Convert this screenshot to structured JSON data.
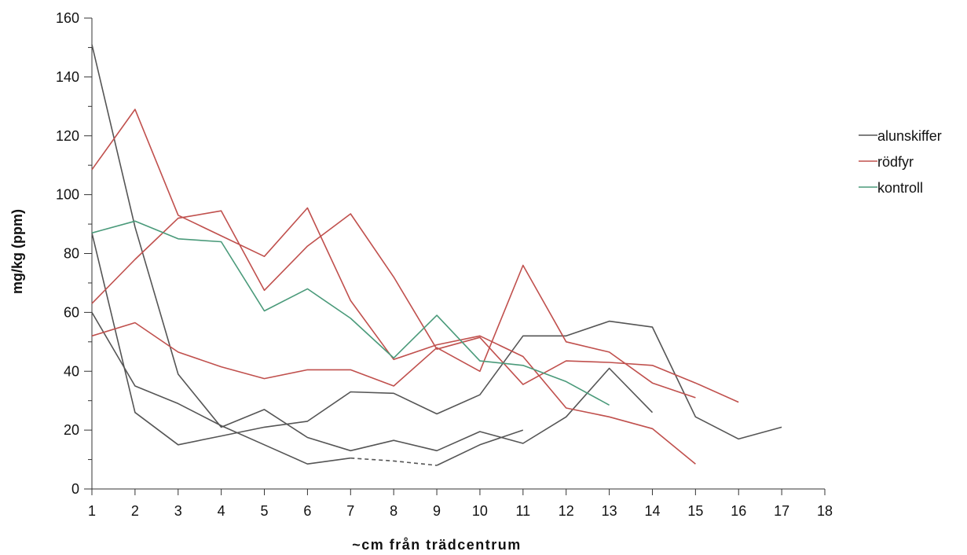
{
  "chart_data": {
    "type": "line",
    "xlabel": "~cm från trädcentrum",
    "ylabel": "mg/kg (ppm)",
    "xlim": [
      1,
      18
    ],
    "ylim": [
      0,
      160
    ],
    "x_ticks": [
      1,
      2,
      3,
      4,
      5,
      6,
      7,
      8,
      9,
      10,
      11,
      12,
      13,
      14,
      15,
      16,
      17,
      18
    ],
    "y_ticks": [
      0,
      20,
      40,
      60,
      80,
      100,
      120,
      140,
      160
    ],
    "y_minor_step": 10,
    "legend_position": "right",
    "legend": [
      {
        "label": "alunskiffer",
        "color": "#555555"
      },
      {
        "label": "rödfyr",
        "color": "#c0504d"
      },
      {
        "label": "kontroll",
        "color": "#4a9a7a"
      }
    ],
    "series": [
      {
        "group": "alunskiffer",
        "color": "#555555",
        "points": [
          [
            1,
            151
          ],
          [
            2,
            89
          ],
          [
            3,
            39
          ],
          [
            4,
            21
          ],
          [
            5,
            27
          ],
          [
            6,
            17.5
          ],
          [
            7,
            13
          ],
          [
            8,
            16.5
          ],
          [
            9,
            13
          ],
          [
            10,
            19.5
          ],
          [
            11,
            15.5
          ],
          [
            12,
            24.5
          ],
          [
            13,
            41
          ],
          [
            14,
            26
          ]
        ]
      },
      {
        "group": "alunskiffer",
        "color": "#555555",
        "points": [
          [
            1,
            87
          ],
          [
            2,
            26
          ],
          [
            3,
            15
          ],
          [
            4,
            18
          ],
          [
            5,
            21
          ],
          [
            6,
            23
          ],
          [
            7,
            33
          ],
          [
            8,
            32.5
          ],
          [
            9,
            25.5
          ],
          [
            10,
            32
          ],
          [
            11,
            52
          ],
          [
            12,
            52
          ],
          [
            13,
            57
          ],
          [
            14,
            55
          ],
          [
            15,
            24.5
          ],
          [
            16,
            17
          ],
          [
            17,
            21
          ]
        ]
      },
      {
        "group": "alunskiffer",
        "color": "#555555",
        "points": [
          [
            1,
            60
          ],
          [
            2,
            35
          ],
          [
            3,
            29
          ],
          [
            4,
            21.5
          ],
          [
            5,
            15
          ],
          [
            6,
            8.5
          ],
          [
            7,
            10.5
          ]
        ]
      },
      {
        "group": "alunskiffer",
        "color": "#555555",
        "dashed": true,
        "points": [
          [
            7,
            10.5
          ],
          [
            8,
            9.5
          ],
          [
            9,
            8
          ]
        ]
      },
      {
        "group": "alunskiffer",
        "color": "#555555",
        "points": [
          [
            9,
            8
          ],
          [
            10,
            15
          ],
          [
            11,
            20
          ]
        ]
      },
      {
        "group": "rödfyr",
        "color": "#c0504d",
        "points": [
          [
            1,
            108.5
          ],
          [
            2,
            129
          ],
          [
            3,
            93
          ],
          [
            4,
            86
          ],
          [
            5,
            79
          ],
          [
            6,
            95.5
          ],
          [
            7,
            64
          ],
          [
            8,
            44
          ],
          [
            9,
            49
          ],
          [
            10,
            52
          ],
          [
            11,
            45
          ],
          [
            12,
            27.5
          ],
          [
            13,
            24.5
          ],
          [
            14,
            20.5
          ],
          [
            15,
            8.5
          ]
        ]
      },
      {
        "group": "rödfyr",
        "color": "#c0504d",
        "points": [
          [
            1,
            63
          ],
          [
            2,
            78
          ],
          [
            3,
            92
          ],
          [
            4,
            94.5
          ],
          [
            5,
            67.5
          ],
          [
            6,
            82.5
          ],
          [
            7,
            93.5
          ],
          [
            8,
            72
          ],
          [
            9,
            47.5
          ],
          [
            10,
            51.5
          ],
          [
            11,
            35.5
          ],
          [
            12,
            43.5
          ],
          [
            13,
            43
          ],
          [
            14,
            42
          ],
          [
            15,
            36
          ],
          [
            16,
            29.5
          ]
        ]
      },
      {
        "group": "rödfyr",
        "color": "#c0504d",
        "points": [
          [
            1,
            52
          ],
          [
            2,
            56.5
          ],
          [
            3,
            46.5
          ],
          [
            4,
            41.5
          ],
          [
            5,
            37.5
          ],
          [
            6,
            40.5
          ],
          [
            7,
            40.5
          ],
          [
            8,
            35
          ],
          [
            9,
            48
          ],
          [
            10,
            40
          ],
          [
            11,
            76
          ],
          [
            12,
            50
          ],
          [
            13,
            46.5
          ],
          [
            14,
            36
          ],
          [
            15,
            31
          ]
        ]
      },
      {
        "group": "kontroll",
        "color": "#4a9a7a",
        "points": [
          [
            1,
            87
          ],
          [
            2,
            91
          ],
          [
            3,
            85
          ],
          [
            4,
            84
          ],
          [
            5,
            60.5
          ],
          [
            6,
            68
          ],
          [
            7,
            58
          ],
          [
            8,
            44.5
          ],
          [
            9,
            59
          ],
          [
            10,
            43.5
          ],
          [
            11,
            42
          ],
          [
            12,
            36.5
          ],
          [
            13,
            28.5
          ]
        ]
      }
    ]
  }
}
